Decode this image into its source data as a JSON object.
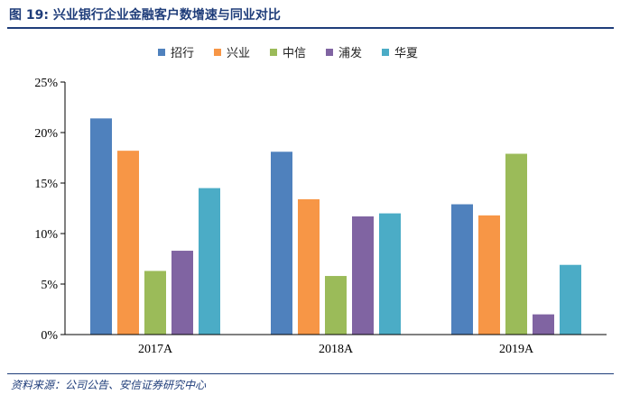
{
  "header": {
    "figure_no": "图 19:",
    "title": "兴业银行企业金融客户数增速与同业对比"
  },
  "footer": {
    "source": "资料来源：公司公告、安信证券研究中心"
  },
  "chart_data": {
    "type": "bar",
    "categories": [
      "2017A",
      "2018A",
      "2019A"
    ],
    "series": [
      {
        "name": "招行",
        "color": "#4f81bd",
        "values": [
          21.4,
          18.1,
          12.9
        ]
      },
      {
        "name": "兴业",
        "color": "#f79646",
        "values": [
          18.2,
          13.4,
          11.8
        ]
      },
      {
        "name": "中信",
        "color": "#9bbb59",
        "values": [
          6.3,
          5.8,
          17.9
        ]
      },
      {
        "name": "浦发",
        "color": "#8064a2",
        "values": [
          8.3,
          11.7,
          2.0
        ]
      },
      {
        "name": "华夏",
        "color": "#4bacc6",
        "values": [
          14.5,
          12.0,
          6.9
        ]
      }
    ],
    "ylim": [
      0,
      25
    ],
    "yticks": [
      "0%",
      "5%",
      "10%",
      "15%",
      "20%",
      "25%"
    ],
    "legend_position": "top",
    "grid": false
  }
}
